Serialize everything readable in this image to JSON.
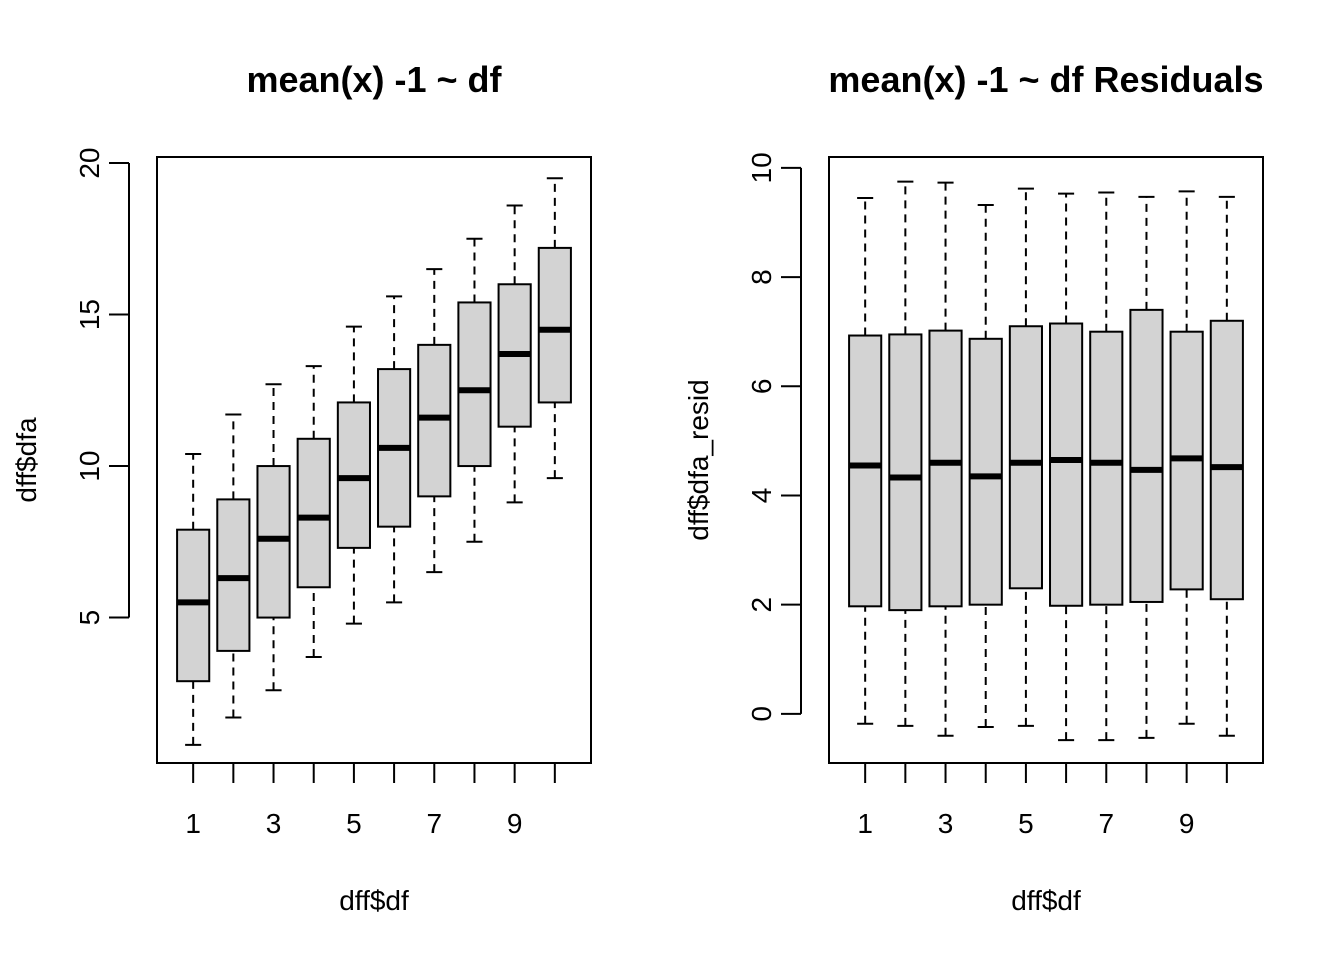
{
  "chart_data": [
    {
      "type": "boxplot",
      "title": "mean(x) -1 ~ df",
      "xlabel": "dff$df",
      "ylabel": "dff$dfa",
      "categories": [
        "1",
        "2",
        "3",
        "4",
        "5",
        "6",
        "7",
        "8",
        "9",
        "10"
      ],
      "x_tick_labels": [
        "1",
        "3",
        "5",
        "7",
        "9"
      ],
      "y_ticks": [
        5,
        10,
        15,
        20
      ],
      "ylim": [
        0.2,
        20.2
      ],
      "boxes": [
        {
          "whisker_low": 0.8,
          "q1": 2.9,
          "median": 5.5,
          "q3": 7.9,
          "whisker_high": 10.4
        },
        {
          "whisker_low": 1.7,
          "q1": 3.9,
          "median": 6.3,
          "q3": 8.9,
          "whisker_high": 11.7
        },
        {
          "whisker_low": 2.6,
          "q1": 5.0,
          "median": 7.6,
          "q3": 10.0,
          "whisker_high": 12.7
        },
        {
          "whisker_low": 3.7,
          "q1": 6.0,
          "median": 8.3,
          "q3": 10.9,
          "whisker_high": 13.3
        },
        {
          "whisker_low": 4.8,
          "q1": 7.3,
          "median": 9.6,
          "q3": 12.1,
          "whisker_high": 14.6
        },
        {
          "whisker_low": 5.5,
          "q1": 8.0,
          "median": 10.6,
          "q3": 13.2,
          "whisker_high": 15.6
        },
        {
          "whisker_low": 6.5,
          "q1": 9.0,
          "median": 11.6,
          "q3": 14.0,
          "whisker_high": 16.5
        },
        {
          "whisker_low": 7.5,
          "q1": 10.0,
          "median": 12.5,
          "q3": 15.4,
          "whisker_high": 17.5
        },
        {
          "whisker_low": 8.8,
          "q1": 11.3,
          "median": 13.7,
          "q3": 16.0,
          "whisker_high": 18.6
        },
        {
          "whisker_low": 9.6,
          "q1": 12.1,
          "median": 14.5,
          "q3": 17.2,
          "whisker_high": 19.5
        }
      ],
      "box_fill": "#d3d3d3",
      "line_color": "#000000"
    },
    {
      "type": "boxplot",
      "title": "mean(x) -1 ~ df Residuals",
      "xlabel": "dff$df",
      "ylabel": "dff$dfa_resid",
      "categories": [
        "1",
        "2",
        "3",
        "4",
        "5",
        "6",
        "7",
        "8",
        "9",
        "10"
      ],
      "x_tick_labels": [
        "1",
        "3",
        "5",
        "7",
        "9"
      ],
      "y_ticks": [
        0,
        2,
        4,
        6,
        8,
        10
      ],
      "ylim": [
        -0.9,
        10.2
      ],
      "boxes": [
        {
          "whisker_low": -0.18,
          "q1": 1.97,
          "median": 4.55,
          "q3": 6.93,
          "whisker_high": 9.45
        },
        {
          "whisker_low": -0.22,
          "q1": 1.9,
          "median": 4.33,
          "q3": 6.95,
          "whisker_high": 9.75
        },
        {
          "whisker_low": -0.4,
          "q1": 1.97,
          "median": 4.6,
          "q3": 7.02,
          "whisker_high": 9.73
        },
        {
          "whisker_low": -0.24,
          "q1": 2.0,
          "median": 4.35,
          "q3": 6.87,
          "whisker_high": 9.32
        },
        {
          "whisker_low": -0.22,
          "q1": 2.3,
          "median": 4.6,
          "q3": 7.1,
          "whisker_high": 9.62
        },
        {
          "whisker_low": -0.48,
          "q1": 1.98,
          "median": 4.65,
          "q3": 7.15,
          "whisker_high": 9.53
        },
        {
          "whisker_low": -0.48,
          "q1": 2.0,
          "median": 4.6,
          "q3": 7.0,
          "whisker_high": 9.55
        },
        {
          "whisker_low": -0.44,
          "q1": 2.05,
          "median": 4.47,
          "q3": 7.4,
          "whisker_high": 9.47
        },
        {
          "whisker_low": -0.18,
          "q1": 2.28,
          "median": 4.68,
          "q3": 7.0,
          "whisker_high": 9.57
        },
        {
          "whisker_low": -0.4,
          "q1": 2.1,
          "median": 4.52,
          "q3": 7.2,
          "whisker_high": 9.47
        }
      ],
      "box_fill": "#d3d3d3",
      "line_color": "#000000"
    }
  ]
}
